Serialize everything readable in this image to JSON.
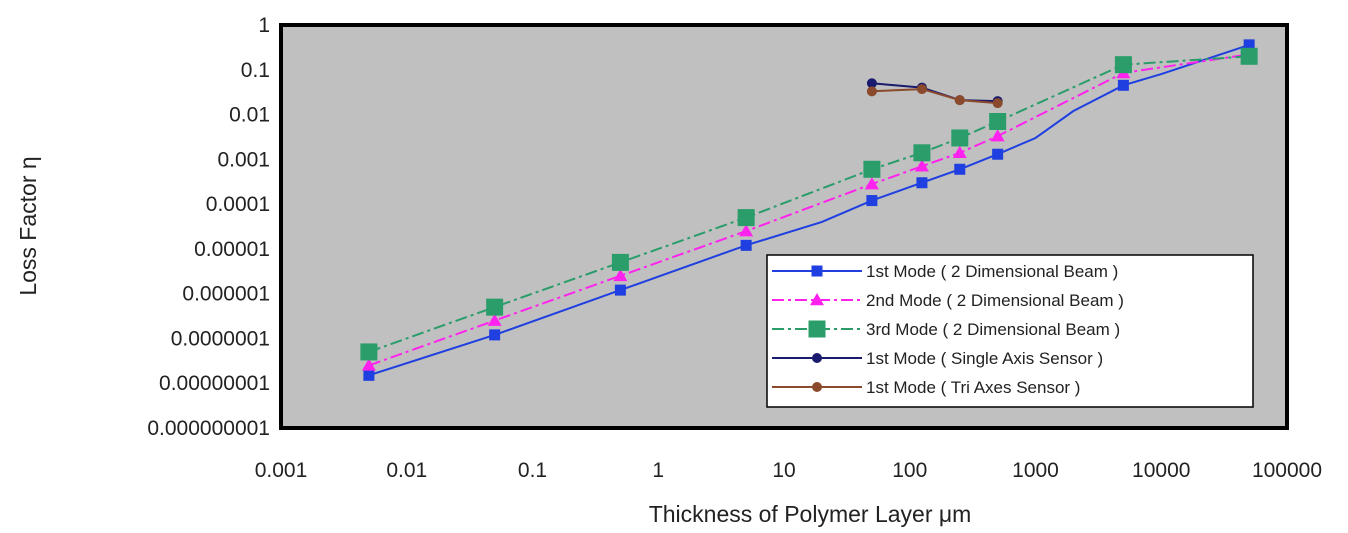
{
  "chart_data": {
    "type": "line",
    "xlabel": "Thickness of Polymer Layer μm",
    "ylabel": "Loss Factor η",
    "x_scale": "log",
    "y_scale": "log",
    "xlim": [
      0.001,
      100000
    ],
    "ylim": [
      1e-09,
      1
    ],
    "x_ticks": [
      {
        "value": 0.001,
        "label": "0.001"
      },
      {
        "value": 0.01,
        "label": "0.01"
      },
      {
        "value": 0.1,
        "label": "0.1"
      },
      {
        "value": 1,
        "label": "1"
      },
      {
        "value": 10,
        "label": "10"
      },
      {
        "value": 100,
        "label": "100"
      },
      {
        "value": 1000,
        "label": "1000"
      },
      {
        "value": 10000,
        "label": "10000"
      },
      {
        "value": 100000,
        "label": "100000"
      }
    ],
    "y_ticks": [
      {
        "value": 1,
        "label": "1"
      },
      {
        "value": 0.1,
        "label": "0.1"
      },
      {
        "value": 0.01,
        "label": "0.01"
      },
      {
        "value": 0.001,
        "label": "0.001"
      },
      {
        "value": 0.0001,
        "label": "0.0001"
      },
      {
        "value": 1e-05,
        "label": "0.00001"
      },
      {
        "value": 1e-06,
        "label": "0.000001"
      },
      {
        "value": 1e-07,
        "label": "0.0000001"
      },
      {
        "value": 1e-08,
        "label": "0.00000001"
      },
      {
        "value": 1e-09,
        "label": "0.000000001"
      }
    ],
    "grid": false,
    "legend_position": "bottom-right",
    "plot_background": "#c0c0c0",
    "series": [
      {
        "name": "1st Mode ( 2 Dimensional Beam )",
        "color": "#1f3fe0",
        "line_style": "solid",
        "marker": "square",
        "marker_size": "small",
        "curve": [
          [
            0.005,
            1.5e-08
          ],
          [
            0.05,
            1.2e-07
          ],
          [
            0.5,
            1.2e-06
          ],
          [
            5,
            1.2e-05
          ],
          [
            20,
            4e-05
          ],
          [
            50,
            0.00012
          ],
          [
            125,
            0.0003
          ],
          [
            250,
            0.0006
          ],
          [
            500,
            0.0013
          ],
          [
            1000,
            0.003
          ],
          [
            2000,
            0.012
          ],
          [
            5000,
            0.045
          ],
          [
            10000,
            0.08
          ],
          [
            50000,
            0.36
          ]
        ],
        "points": [
          [
            0.005,
            1.5e-08
          ],
          [
            0.05,
            1.2e-07
          ],
          [
            0.5,
            1.2e-06
          ],
          [
            5,
            1.2e-05
          ],
          [
            50,
            0.00012
          ],
          [
            125,
            0.0003
          ],
          [
            250,
            0.0006
          ],
          [
            500,
            0.0013
          ],
          [
            5000,
            0.045
          ],
          [
            50000,
            0.36
          ]
        ]
      },
      {
        "name": "2nd Mode ( 2 Dimensional Beam )",
        "color": "#ff22ee",
        "line_style": "dash-dot",
        "marker": "triangle",
        "marker_size": "small",
        "curve": [
          [
            0.005,
            2.5e-08
          ],
          [
            0.05,
            2.5e-07
          ],
          [
            0.5,
            2.5e-06
          ],
          [
            5,
            2.5e-05
          ],
          [
            50,
            0.00028
          ],
          [
            125,
            0.0007
          ],
          [
            250,
            0.0014
          ],
          [
            500,
            0.0033
          ],
          [
            5000,
            0.085
          ],
          [
            50000,
            0.22
          ]
        ],
        "points": [
          [
            0.005,
            2.5e-08
          ],
          [
            0.05,
            2.5e-07
          ],
          [
            0.5,
            2.5e-06
          ],
          [
            5,
            2.5e-05
          ],
          [
            50,
            0.00028
          ],
          [
            125,
            0.0007
          ],
          [
            250,
            0.0014
          ],
          [
            500,
            0.0033
          ],
          [
            5000,
            0.085
          ],
          [
            50000,
            0.22
          ]
        ]
      },
      {
        "name": "3rd Mode ( 2 Dimensional Beam )",
        "color": "#2a9d6a",
        "line_style": "dash-dot",
        "marker": "square",
        "marker_size": "large",
        "curve": [
          [
            0.005,
            5e-08
          ],
          [
            0.05,
            5e-07
          ],
          [
            0.5,
            5e-06
          ],
          [
            5,
            5e-05
          ],
          [
            50,
            0.0006
          ],
          [
            125,
            0.0014
          ],
          [
            250,
            0.003
          ],
          [
            500,
            0.007
          ],
          [
            5000,
            0.13
          ],
          [
            50000,
            0.2
          ]
        ],
        "points": [
          [
            0.005,
            5e-08
          ],
          [
            0.05,
            5e-07
          ],
          [
            0.5,
            5e-06
          ],
          [
            5,
            5e-05
          ],
          [
            50,
            0.0006
          ],
          [
            125,
            0.0014
          ],
          [
            250,
            0.003
          ],
          [
            500,
            0.007
          ],
          [
            5000,
            0.13
          ],
          [
            50000,
            0.2
          ]
        ]
      },
      {
        "name": "1st Mode ( Single Axis Sensor )",
        "color": "#1a1a6e",
        "line_style": "solid",
        "marker": "circle",
        "marker_size": "small",
        "curve": [
          [
            50,
            0.05
          ],
          [
            125,
            0.04
          ],
          [
            250,
            0.021
          ],
          [
            500,
            0.02
          ]
        ],
        "points": [
          [
            50,
            0.05
          ],
          [
            125,
            0.04
          ],
          [
            250,
            0.021
          ],
          [
            500,
            0.02
          ]
        ]
      },
      {
        "name": "1st Mode ( Tri Axes Sensor )",
        "color": "#8b4a2b",
        "line_style": "solid",
        "marker": "circle",
        "marker_size": "small",
        "curve": [
          [
            50,
            0.033
          ],
          [
            125,
            0.037
          ],
          [
            250,
            0.021
          ],
          [
            500,
            0.018
          ]
        ],
        "points": [
          [
            50,
            0.033
          ],
          [
            125,
            0.037
          ],
          [
            250,
            0.021
          ],
          [
            500,
            0.018
          ]
        ]
      }
    ]
  }
}
